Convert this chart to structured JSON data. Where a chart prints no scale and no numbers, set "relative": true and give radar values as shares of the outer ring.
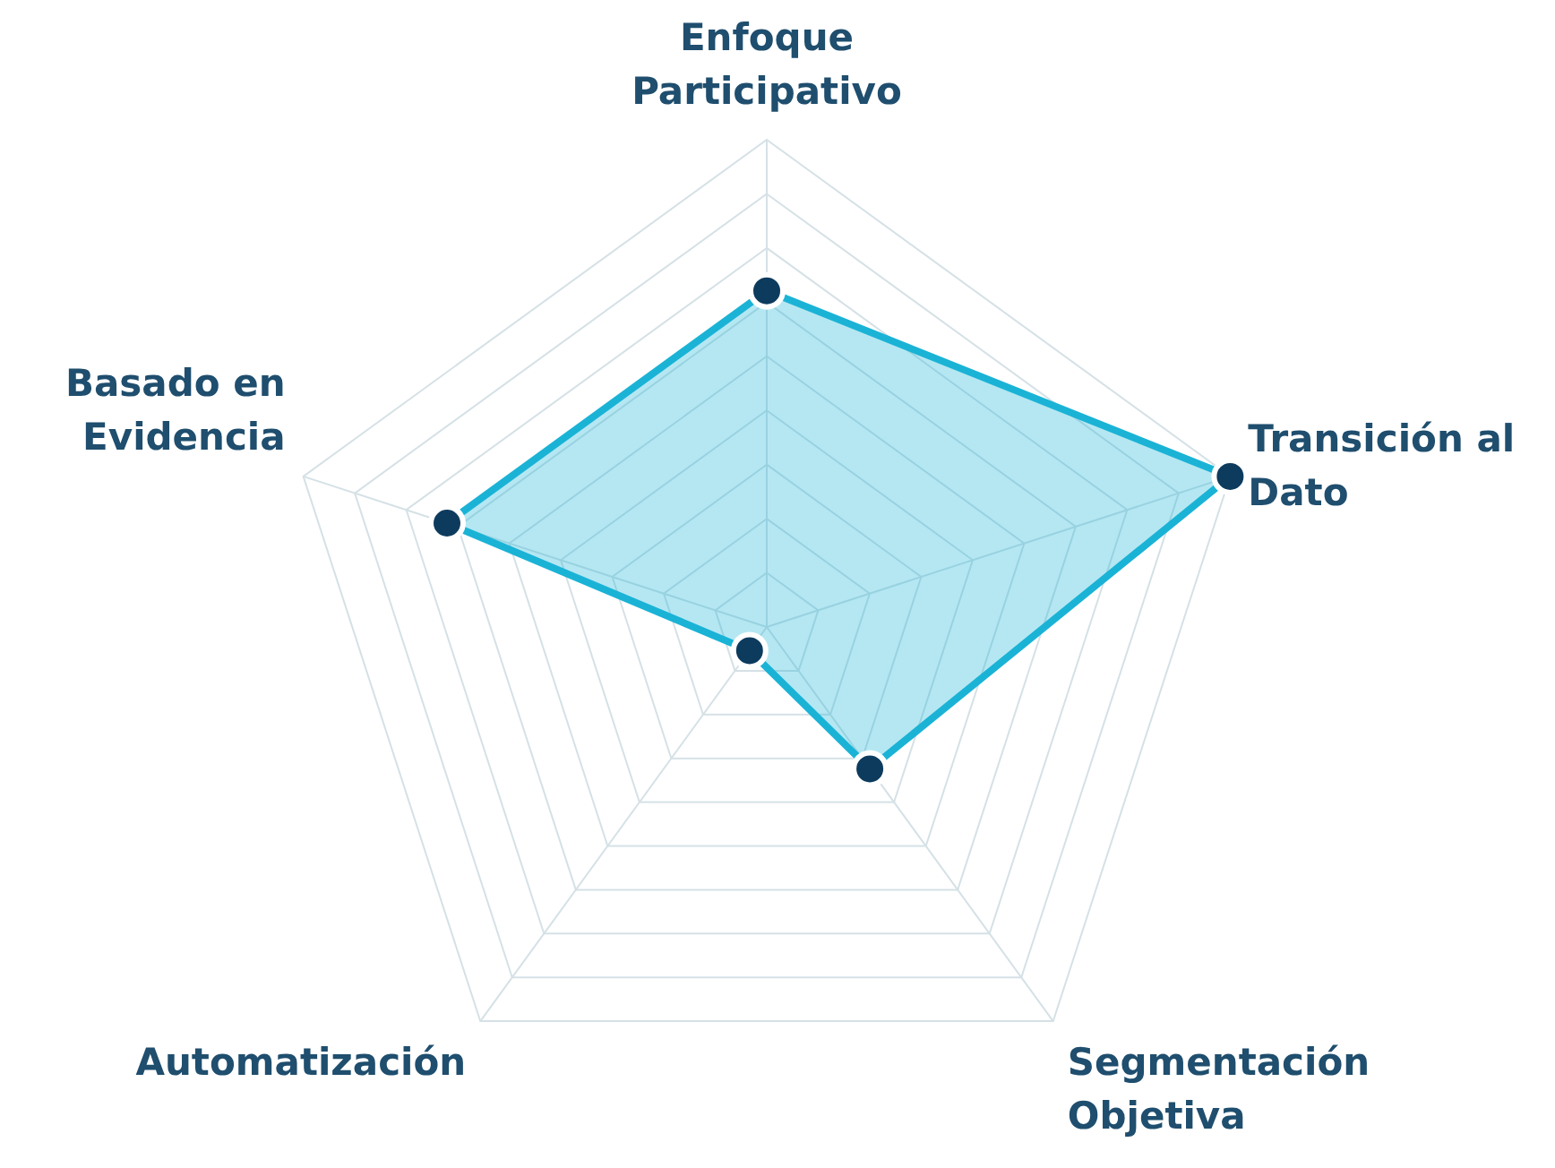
{
  "chart_data": {
    "type": "radar",
    "relative": true,
    "categories": [
      "Enfoque\nParticipativo",
      "Transición al\nDato",
      "Segmentación\nObjetiva",
      "Automatización",
      "Basado en\nEvidencia"
    ],
    "series": [
      {
        "color": "#1ab3d6",
        "values": [
          0.69,
          1.0,
          0.36,
          0.06,
          0.69
        ]
      }
    ],
    "marker": "circle",
    "grid": true
  }
}
